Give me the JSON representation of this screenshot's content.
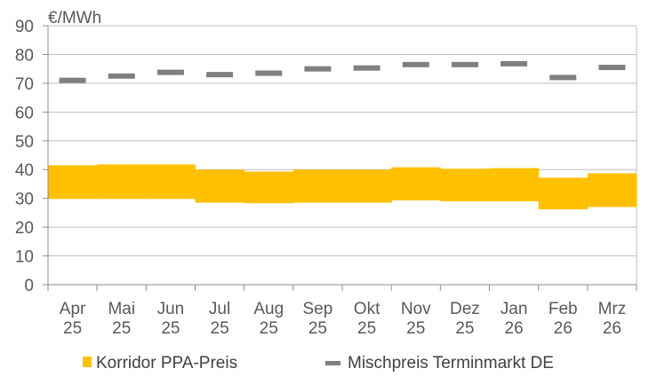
{
  "chart_data": {
    "type": "bar",
    "unit_label": "€/MWh",
    "categories": [
      [
        "Apr",
        "25"
      ],
      [
        "Mai",
        "25"
      ],
      [
        "Jun",
        "25"
      ],
      [
        "Jul",
        "25"
      ],
      [
        "Aug",
        "25"
      ],
      [
        "Sep",
        "25"
      ],
      [
        "Okt",
        "25"
      ],
      [
        "Nov",
        "25"
      ],
      [
        "Dez",
        "25"
      ],
      [
        "Jan",
        "26"
      ],
      [
        "Feb",
        "26"
      ],
      [
        "Mrz",
        "26"
      ]
    ],
    "ylim": [
      0,
      90
    ],
    "yticks": [
      0,
      10,
      20,
      30,
      40,
      50,
      60,
      70,
      80,
      90
    ],
    "grid": true,
    "legend_position": "bottom",
    "series": [
      {
        "name": "Korridor PPA-Preis",
        "kind": "range",
        "color": "#FFC000",
        "low": [
          29.8,
          29.8,
          29.8,
          28.5,
          28.3,
          28.5,
          28.5,
          29.3,
          29.0,
          29.0,
          26.2,
          27.0
        ],
        "high": [
          41.5,
          41.8,
          41.8,
          40.0,
          39.3,
          40.0,
          40.0,
          40.8,
          40.3,
          40.5,
          37.2,
          38.7
        ]
      },
      {
        "name": "Mischpreis Terminmarkt DE",
        "kind": "marker",
        "color": "#7F7F7F",
        "values": [
          71.0,
          72.5,
          73.8,
          73.0,
          73.5,
          75.0,
          75.3,
          76.5,
          76.5,
          76.8,
          72.0,
          75.5
        ]
      }
    ]
  }
}
